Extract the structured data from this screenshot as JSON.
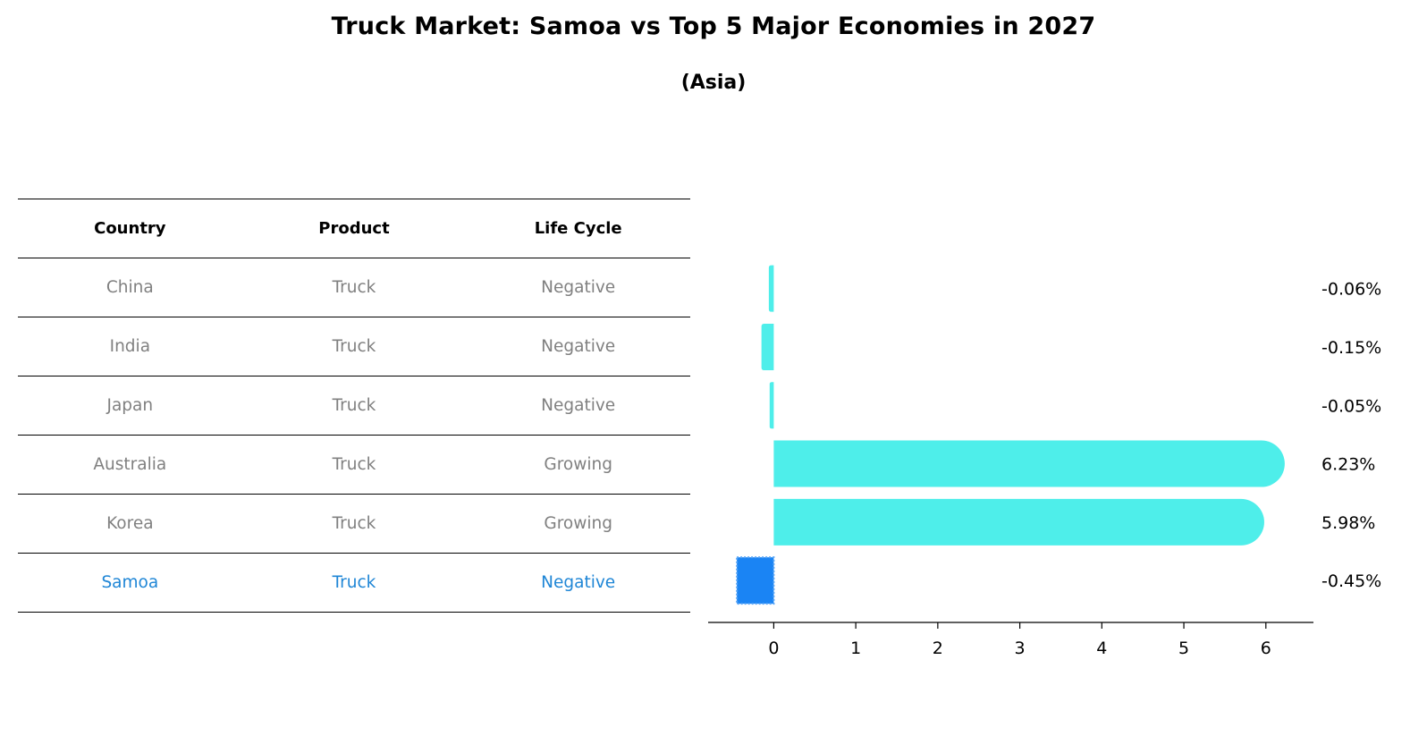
{
  "title": "Truck Market: Samoa vs Top 5 Major Economies in 2027",
  "subtitle": "(Asia)",
  "table": {
    "headers": [
      "Country",
      "Product",
      "Life Cycle"
    ],
    "rows": [
      {
        "country": "China",
        "product": "Truck",
        "life_cycle": "Negative",
        "highlight": false
      },
      {
        "country": "India",
        "product": "Truck",
        "life_cycle": "Negative",
        "highlight": false
      },
      {
        "country": "Japan",
        "product": "Truck",
        "life_cycle": "Negative",
        "highlight": false
      },
      {
        "country": "Australia",
        "product": "Truck",
        "life_cycle": "Growing",
        "highlight": false
      },
      {
        "country": "Korea",
        "product": "Truck",
        "life_cycle": "Growing",
        "highlight": false
      },
      {
        "country": "Samoa",
        "product": "Truck",
        "life_cycle": "Negative",
        "highlight": true
      }
    ]
  },
  "colors": {
    "bar": "#4eeeea",
    "highlight_bar": "#1a84f4",
    "highlight_text": "#1f86d6",
    "muted_text": "#808080"
  },
  "chart_data": {
    "type": "bar",
    "orientation": "horizontal",
    "categories": [
      "China",
      "India",
      "Japan",
      "Australia",
      "Korea",
      "Samoa"
    ],
    "values": [
      -0.06,
      -0.15,
      -0.05,
      6.23,
      5.98,
      -0.45
    ],
    "value_labels": [
      "-0.06%",
      "-0.15%",
      "-0.05%",
      "6.23%",
      "5.98%",
      "-0.45%"
    ],
    "highlight": "Samoa",
    "xticks": [
      0,
      1,
      2,
      3,
      4,
      5,
      6
    ],
    "xlim": [
      -0.8,
      6.58
    ],
    "grid": false
  }
}
